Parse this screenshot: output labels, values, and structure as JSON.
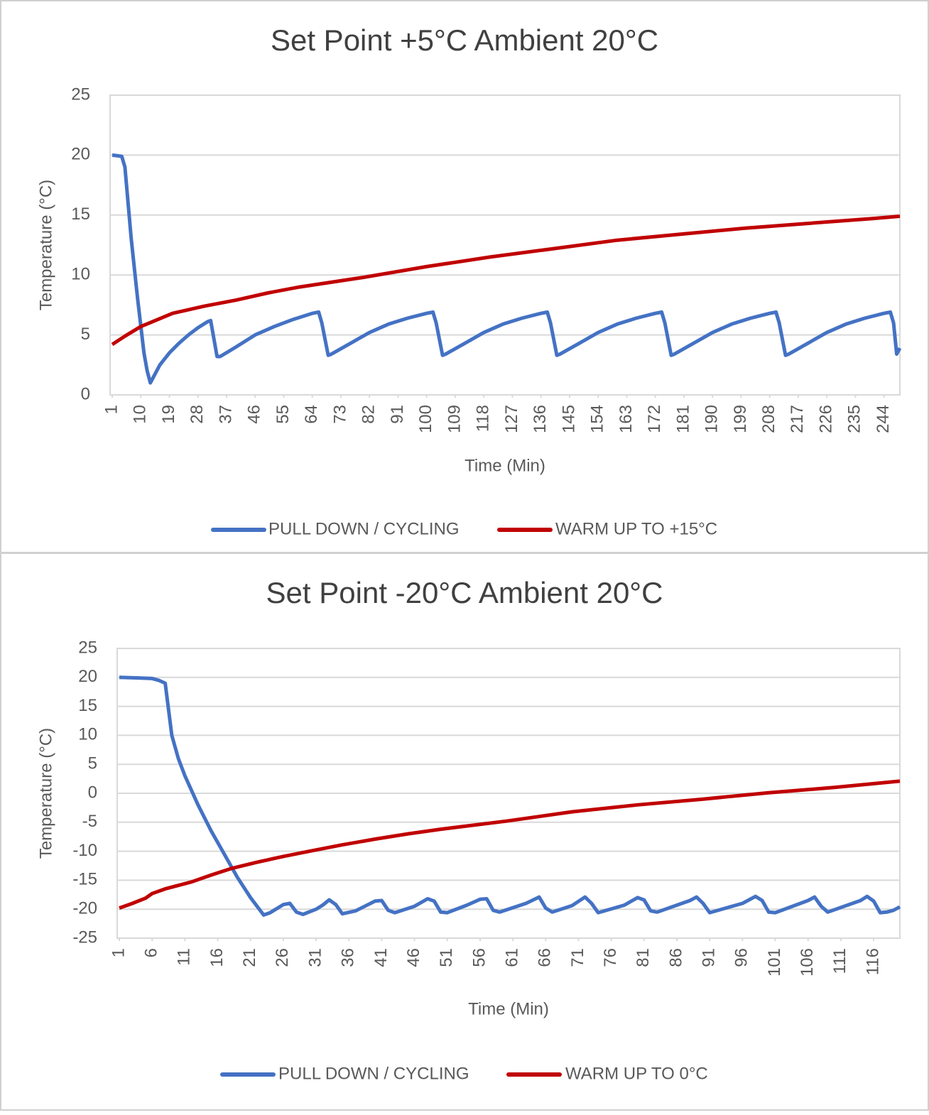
{
  "chart_data": [
    {
      "type": "line",
      "title": "Set Point +5°C Ambient 20°C",
      "x_label": "Time (Min)",
      "y_label": "Temperature (°C)",
      "xlim": [
        1,
        249
      ],
      "ylim": [
        0,
        25
      ],
      "yticks": [
        0,
        5,
        10,
        15,
        20,
        25
      ],
      "grid": true,
      "legend": "bottom",
      "xticks": [
        1,
        10,
        19,
        28,
        37,
        46,
        55,
        64,
        73,
        82,
        91,
        100,
        109,
        118,
        127,
        136,
        145,
        154,
        163,
        172,
        181,
        190,
        199,
        208,
        217,
        226,
        235,
        244
      ],
      "series": [
        {
          "name": "PULL DOWN / CYCLING",
          "color": "#4472c4",
          "x": [
            1,
            4,
            5,
            7,
            9,
            11,
            12,
            13,
            16,
            19,
            22,
            25,
            28,
            31,
            32,
            34,
            35,
            40,
            46,
            52,
            58,
            64,
            66,
            67,
            69,
            70,
            76,
            82,
            88,
            94,
            100,
            102,
            103,
            105,
            106,
            112,
            118,
            124,
            130,
            136,
            138,
            139,
            141,
            142,
            148,
            154,
            160,
            166,
            172,
            174,
            175,
            177,
            178,
            184,
            190,
            196,
            202,
            208,
            210,
            211,
            213,
            214,
            220,
            226,
            232,
            238,
            244,
            246,
            247,
            248,
            249
          ],
          "values": [
            20,
            19.9,
            19,
            13,
            8,
            3.5,
            2,
            1,
            2.5,
            3.5,
            4.3,
            5,
            5.6,
            6.1,
            6.2,
            3.2,
            3.2,
            4,
            5,
            5.7,
            6.3,
            6.8,
            6.9,
            6,
            3.3,
            3.4,
            4.3,
            5.2,
            5.9,
            6.4,
            6.8,
            6.9,
            6,
            3.3,
            3.4,
            4.3,
            5.2,
            5.9,
            6.4,
            6.8,
            6.9,
            6,
            3.3,
            3.4,
            4.3,
            5.2,
            5.9,
            6.4,
            6.8,
            6.9,
            6,
            3.3,
            3.4,
            4.3,
            5.2,
            5.9,
            6.4,
            6.8,
            6.9,
            6,
            3.3,
            3.4,
            4.3,
            5.2,
            5.9,
            6.4,
            6.8,
            6.9,
            6,
            3.4,
            3.9
          ]
        },
        {
          "name": "WARM UP TO +15°C",
          "color": "#c00000",
          "x": [
            1,
            5,
            10,
            20,
            30,
            40,
            50,
            60,
            80,
            100,
            120,
            140,
            160,
            180,
            200,
            220,
            240,
            249
          ],
          "values": [
            4.2,
            4.9,
            5.7,
            6.8,
            7.4,
            7.9,
            8.5,
            9.0,
            9.8,
            10.7,
            11.5,
            12.2,
            12.9,
            13.4,
            13.9,
            14.3,
            14.7,
            14.9
          ]
        }
      ]
    },
    {
      "type": "line",
      "title": "Set Point -20°C Ambient 20°C",
      "x_label": "Time (Min)",
      "y_label": "Temperature (°C)",
      "xlim": [
        1,
        120
      ],
      "ylim": [
        -25,
        25
      ],
      "yticks": [
        -25,
        -20,
        -15,
        -10,
        -5,
        0,
        5,
        10,
        15,
        20,
        25
      ],
      "grid": true,
      "legend": "bottom",
      "xticks": [
        1,
        6,
        11,
        16,
        21,
        26,
        31,
        36,
        41,
        46,
        51,
        56,
        61,
        66,
        71,
        76,
        81,
        86,
        91,
        96,
        101,
        106,
        111,
        116
      ],
      "series": [
        {
          "name": "PULL DOWN / CYCLING",
          "color": "#4472c4",
          "x": [
            1,
            4,
            6,
            7,
            8,
            9,
            10,
            11,
            13,
            15,
            17,
            19,
            21,
            23,
            24,
            26,
            27,
            28,
            29,
            31,
            32,
            33,
            34,
            35,
            37,
            40,
            41,
            42,
            43,
            46,
            48,
            49,
            50,
            51,
            54,
            56,
            57,
            58,
            59,
            63,
            65,
            66,
            67,
            70,
            72,
            73,
            74,
            78,
            80,
            81,
            82,
            83,
            88,
            89,
            90,
            91,
            96,
            98,
            99,
            100,
            101,
            106,
            107,
            108,
            109,
            114,
            115,
            116,
            117,
            118,
            119,
            120
          ],
          "values": [
            20,
            19.9,
            19.8,
            19.5,
            19,
            10,
            6,
            3,
            -2,
            -6.5,
            -10.5,
            -14.5,
            -18,
            -21,
            -20.6,
            -19.2,
            -19,
            -20.5,
            -20.9,
            -20,
            -19.3,
            -18.4,
            -19.2,
            -20.8,
            -20.3,
            -18.6,
            -18.5,
            -20.2,
            -20.6,
            -19.5,
            -18.2,
            -18.6,
            -20.5,
            -20.6,
            -19.3,
            -18.3,
            -18.2,
            -20.2,
            -20.5,
            -19,
            -17.9,
            -19.8,
            -20.5,
            -19.4,
            -17.9,
            -19,
            -20.6,
            -19.3,
            -18,
            -18.4,
            -20.3,
            -20.5,
            -18.5,
            -17.9,
            -19,
            -20.6,
            -19,
            -17.8,
            -18.5,
            -20.5,
            -20.6,
            -18.5,
            -17.9,
            -19.5,
            -20.5,
            -18.5,
            -17.8,
            -18.6,
            -20.6,
            -20.5,
            -20.2,
            -19.6
          ]
        },
        {
          "name": "WARM UP TO 0°C",
          "color": "#c00000",
          "x": [
            1,
            3,
            5,
            6,
            8,
            10,
            12,
            15,
            18,
            22,
            26,
            30,
            35,
            40,
            45,
            50,
            60,
            70,
            80,
            90,
            100,
            110,
            120
          ],
          "values": [
            -19.8,
            -19,
            -18.1,
            -17.3,
            -16.5,
            -15.9,
            -15.3,
            -14.1,
            -13,
            -11.9,
            -10.9,
            -10,
            -8.9,
            -7.9,
            -7,
            -6.2,
            -4.8,
            -3.2,
            -2,
            -1,
            0.1,
            1,
            2.1
          ]
        }
      ]
    }
  ]
}
